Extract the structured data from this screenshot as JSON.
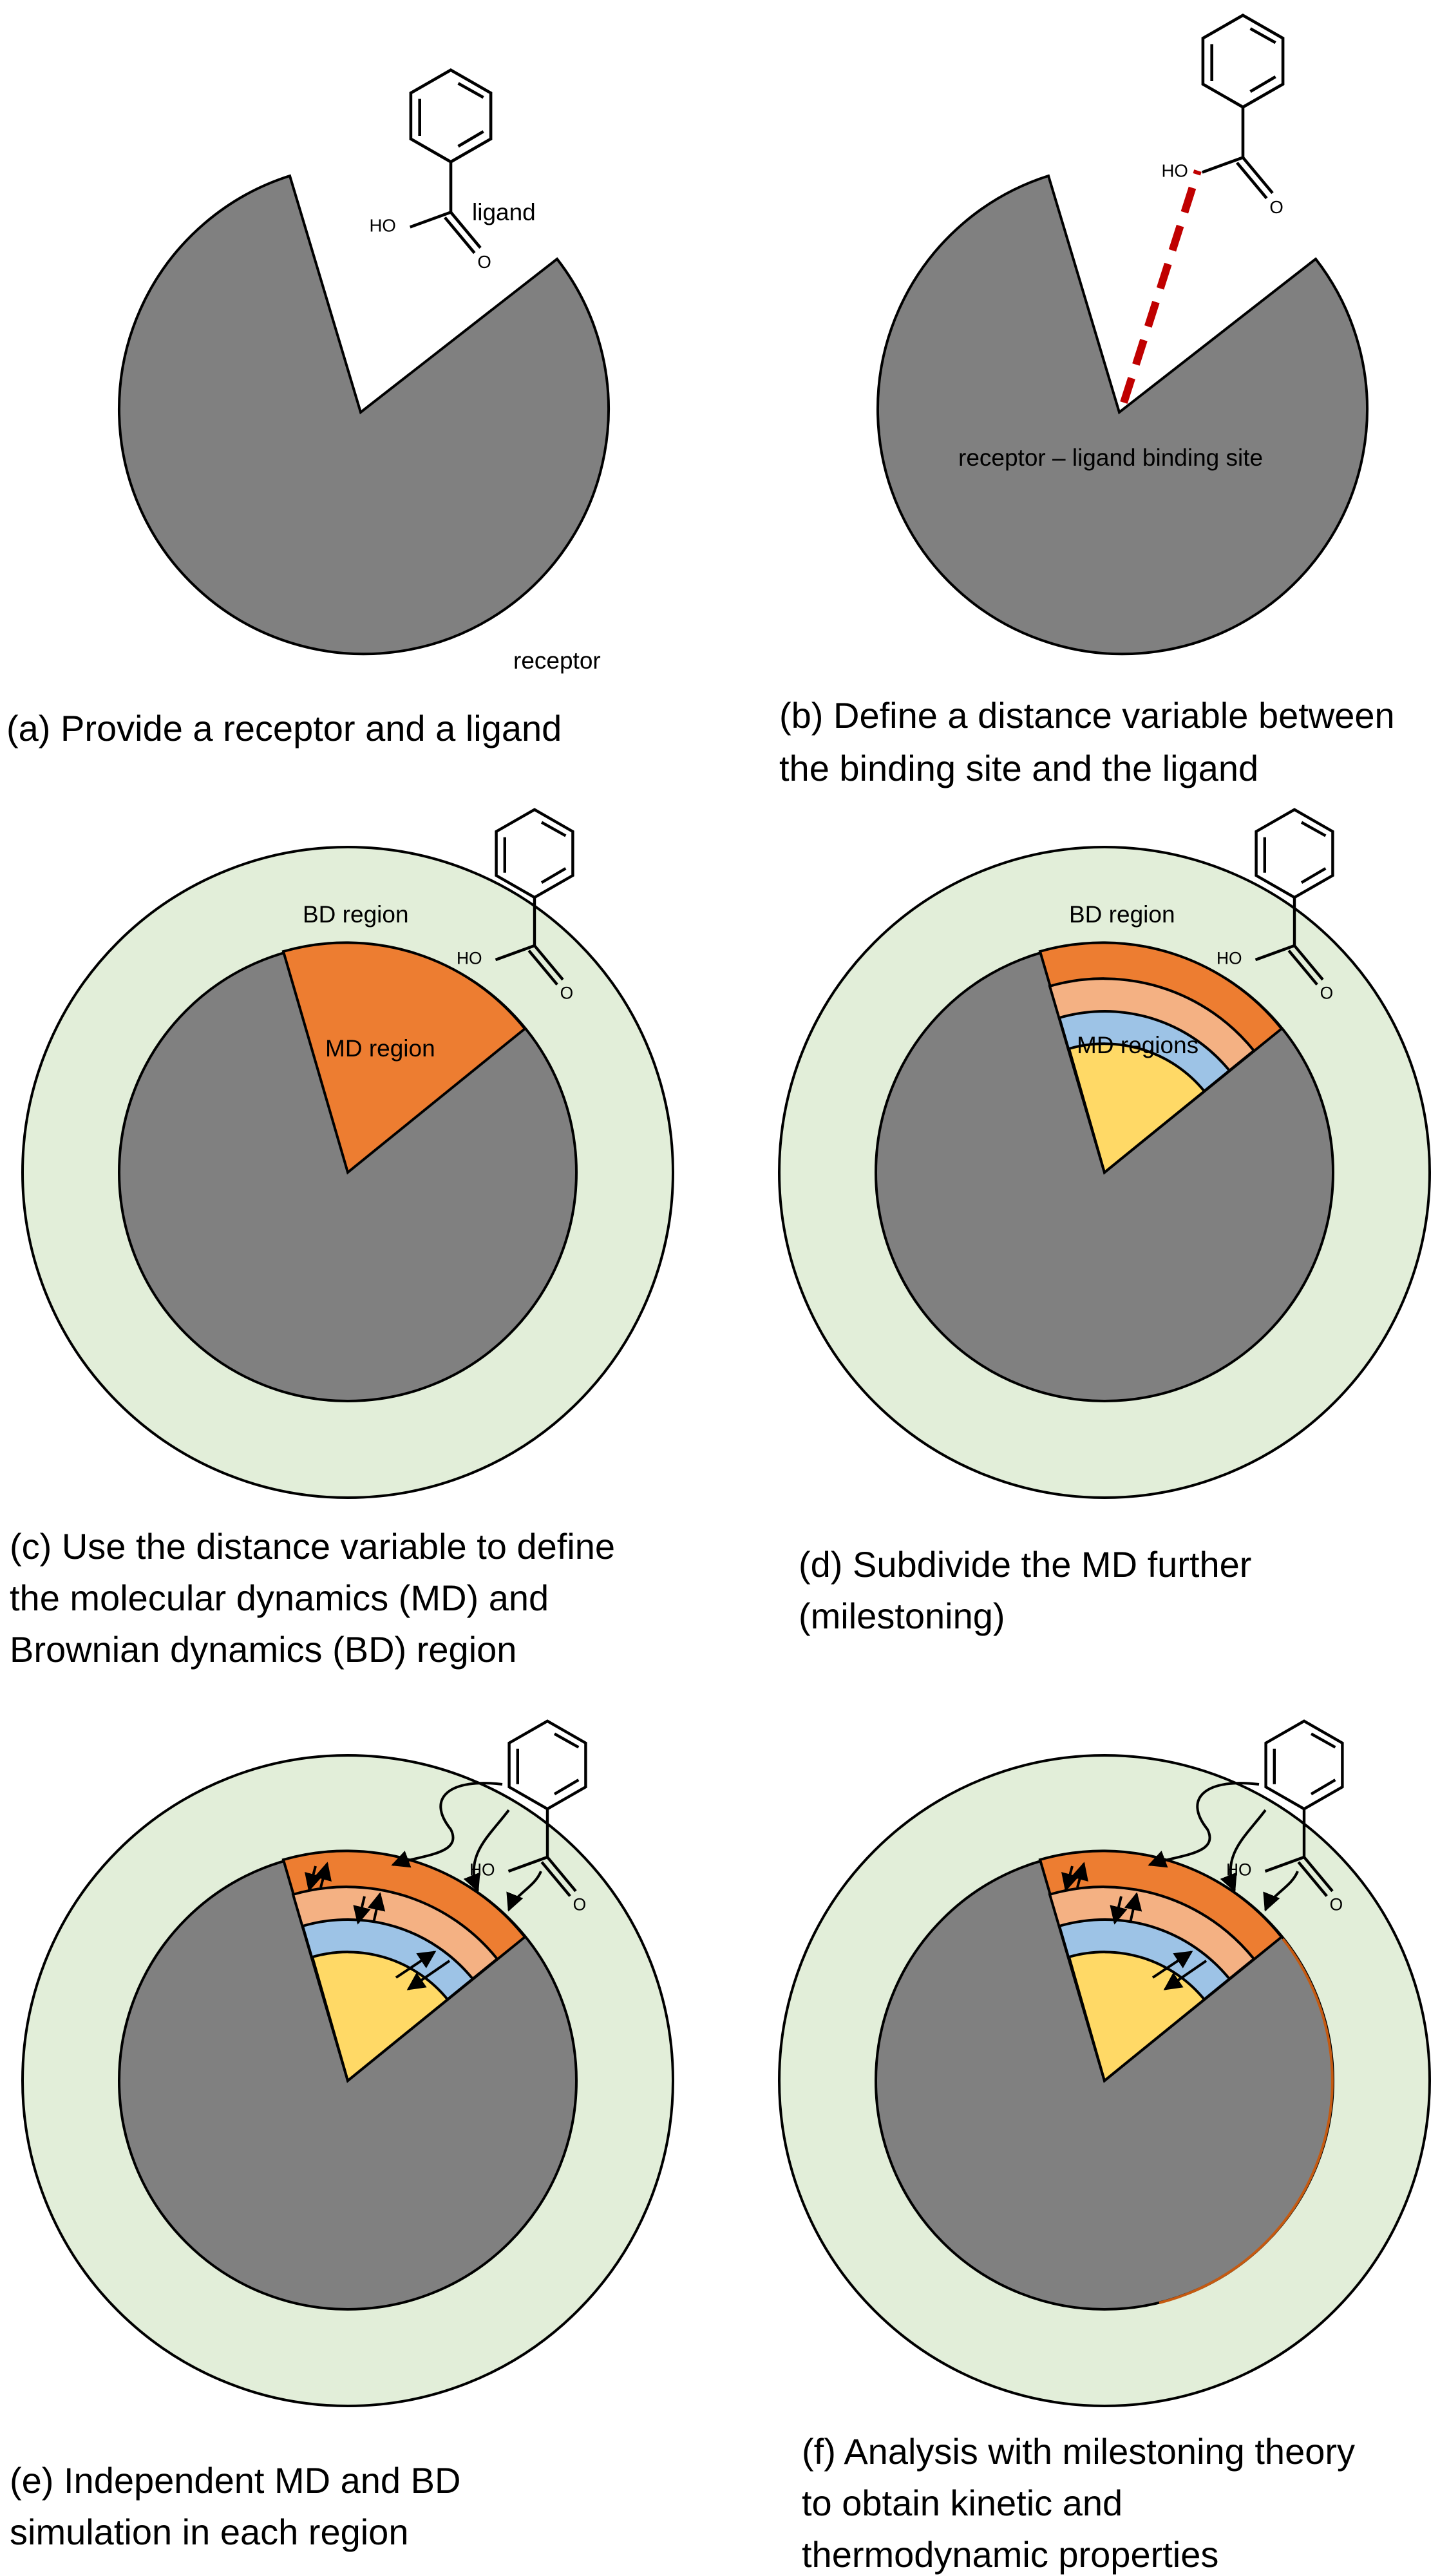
{
  "colors": {
    "receptor": "#808080",
    "bd_region": "#e2eed9",
    "md_outer": "#ed7d31",
    "md_2": "#f4b183",
    "md_3": "#9dc3e6",
    "md_inner": "#ffd966",
    "distance_line": "#c00000",
    "outline": "#000000"
  },
  "ligand": {
    "group_label": "HO",
    "atom_label": "O"
  },
  "panels": {
    "a": {
      "ligand_label": "ligand",
      "receptor_label": "receptor",
      "caption": [
        "(a) Provide a receptor and a ligand"
      ]
    },
    "b": {
      "site_label": "receptor – ligand binding site",
      "caption": [
        "(b) Define a distance variable between",
        "the binding site and the ligand"
      ]
    },
    "c": {
      "bd_label": "BD region",
      "md_label": "MD region",
      "caption": [
        "(c) Use the distance variable to define",
        "the molecular dynamics (MD)  and",
        "Brownian dynamics (BD) region"
      ]
    },
    "d": {
      "bd_label": "BD region",
      "md_label": "MD regions",
      "caption": [
        "(d) Subdivide the MD further",
        " (milestoning)"
      ]
    },
    "e": {
      "caption": [
        "(e) Independent MD and BD",
        "simulation in each region"
      ]
    },
    "f": {
      "caption": [
        "(f) Analysis with milestoning theory",
        "to obtain  kinetic and",
        "thermodynamic properties"
      ]
    }
  }
}
